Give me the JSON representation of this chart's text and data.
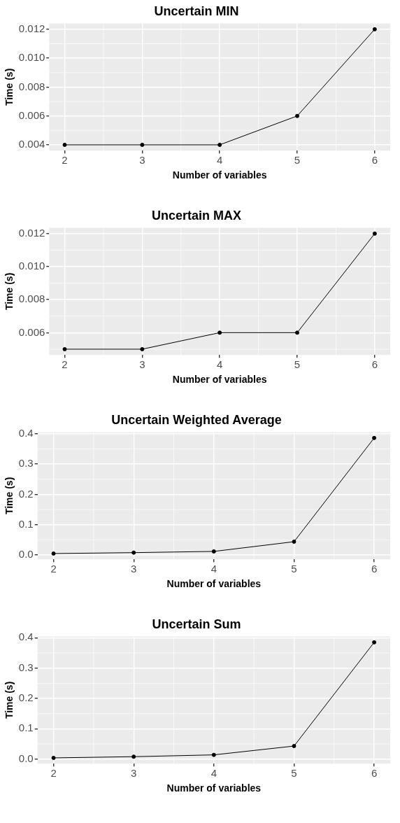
{
  "chart_data": [
    {
      "type": "line",
      "title": "Uncertain MIN",
      "xlabel": "Number of variables",
      "ylabel": "Time (s)",
      "x": [
        2,
        3,
        4,
        5,
        6
      ],
      "series": [
        {
          "color": "#000000",
          "values": [
            0.004,
            0.004,
            0.004,
            0.006,
            0.012
          ]
        }
      ],
      "xlim": [
        1.8,
        6.2
      ],
      "xticks": [
        2,
        3,
        4,
        5,
        6
      ],
      "ylim": [
        0.0036,
        0.0124
      ],
      "yticks": [
        {
          "value": 0.004,
          "label": "0.004"
        },
        {
          "value": 0.006,
          "label": "0.006"
        },
        {
          "value": 0.008,
          "label": "0.008"
        },
        {
          "value": 0.01,
          "label": "0.010"
        },
        {
          "value": 0.012,
          "label": "0.012"
        }
      ],
      "grid": true,
      "marker": "circle",
      "line_style": "solid"
    },
    {
      "type": "line",
      "title": "Uncertain MAX",
      "xlabel": "Number of variables",
      "ylabel": "Time (s)",
      "x": [
        2,
        3,
        4,
        5,
        6
      ],
      "series": [
        {
          "color": "#000000",
          "values": [
            0.005,
            0.005,
            0.006,
            0.006,
            0.012
          ]
        }
      ],
      "xlim": [
        1.8,
        6.2
      ],
      "xticks": [
        2,
        3,
        4,
        5,
        6
      ],
      "ylim": [
        0.00465,
        0.01235
      ],
      "yticks": [
        {
          "value": 0.006,
          "label": "0.006"
        },
        {
          "value": 0.008,
          "label": "0.008"
        },
        {
          "value": 0.01,
          "label": "0.010"
        },
        {
          "value": 0.012,
          "label": "0.012"
        }
      ],
      "grid": true,
      "marker": "circle",
      "line_style": "solid"
    },
    {
      "type": "line",
      "title": "Uncertain Weighted Average",
      "xlabel": "Number of variables",
      "ylabel": "Time (s)",
      "x": [
        2,
        3,
        4,
        5,
        6
      ],
      "series": [
        {
          "color": "#000000",
          "values": [
            0.005,
            0.008,
            0.012,
            0.044,
            0.386
          ]
        }
      ],
      "xlim": [
        1.8,
        6.2
      ],
      "xticks": [
        2,
        3,
        4,
        5,
        6
      ],
      "ylim": [
        -0.014,
        0.405
      ],
      "yticks": [
        {
          "value": 0,
          "label": "0.0"
        },
        {
          "value": 0.1,
          "label": "0.1"
        },
        {
          "value": 0.2,
          "label": "0.2"
        },
        {
          "value": 0.3,
          "label": "0.3"
        },
        {
          "value": 0.4,
          "label": "0.4"
        }
      ],
      "grid": true,
      "marker": "circle",
      "line_style": "solid"
    },
    {
      "type": "line",
      "title": "Uncertain Sum",
      "xlabel": "Number of variables",
      "ylabel": "Time (s)",
      "x": [
        2,
        3,
        4,
        5,
        6
      ],
      "series": [
        {
          "color": "#000000",
          "values": [
            0.004,
            0.008,
            0.014,
            0.043,
            0.385
          ]
        }
      ],
      "xlim": [
        1.8,
        6.2
      ],
      "xticks": [
        2,
        3,
        4,
        5,
        6
      ],
      "ylim": [
        -0.015,
        0.404
      ],
      "yticks": [
        {
          "value": 0,
          "label": "0.0"
        },
        {
          "value": 0.1,
          "label": "0.1"
        },
        {
          "value": 0.2,
          "label": "0.2"
        },
        {
          "value": 0.3,
          "label": "0.3"
        },
        {
          "value": 0.4,
          "label": "0.4"
        }
      ],
      "grid": true,
      "marker": "circle",
      "line_style": "solid"
    }
  ]
}
